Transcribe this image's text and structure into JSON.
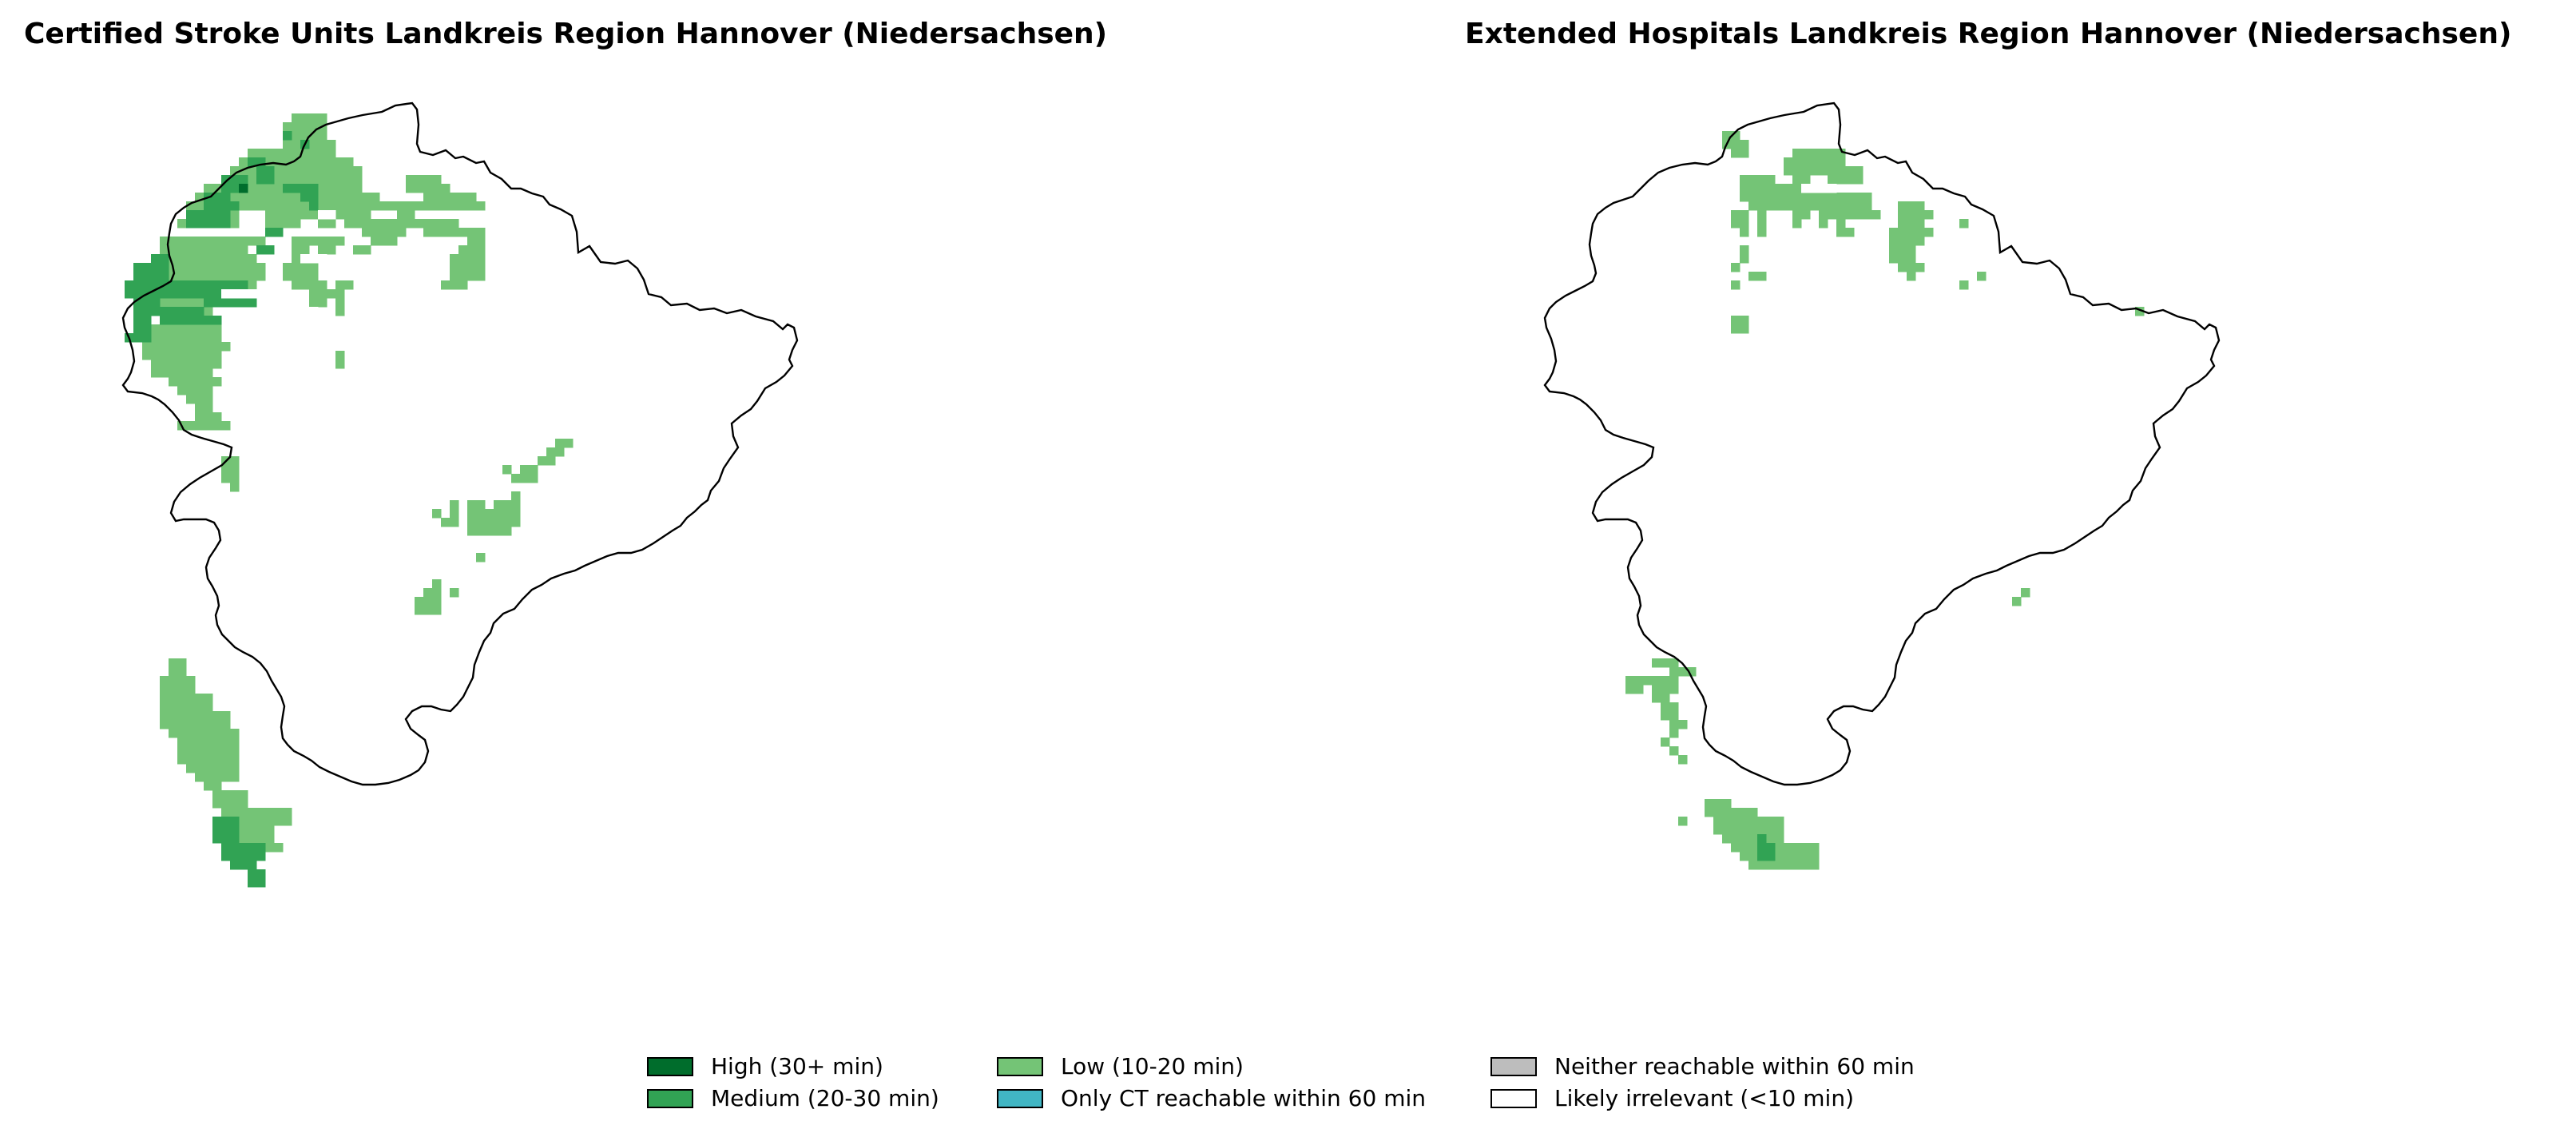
{
  "titles": {
    "left": "Certified Stroke Units Landkreis Region Hannover (Niedersachsen)",
    "right": "Extended Hospitals Landkreis Region Hannover (Niedersachsen)"
  },
  "colors": {
    "high": "#006d2c",
    "medium": "#31a354",
    "low": "#74c476",
    "only_ct": "#41b6c4",
    "neither": "#bdbdbd",
    "irrelevant": "#ffffff"
  },
  "legend": [
    {
      "key": "high",
      "label": "High (30+ min)"
    },
    {
      "key": "medium",
      "label": "Medium (20-30 min)"
    },
    {
      "key": "low",
      "label": "Low (10-20 min)"
    },
    {
      "key": "only_ct",
      "label": "Only CT reachable within 60 min"
    },
    {
      "key": "neither",
      "label": "Neither reachable within 60 min"
    },
    {
      "key": "irrelevant",
      "label": "Likely irrelevant (<10 min)"
    }
  ]
}
